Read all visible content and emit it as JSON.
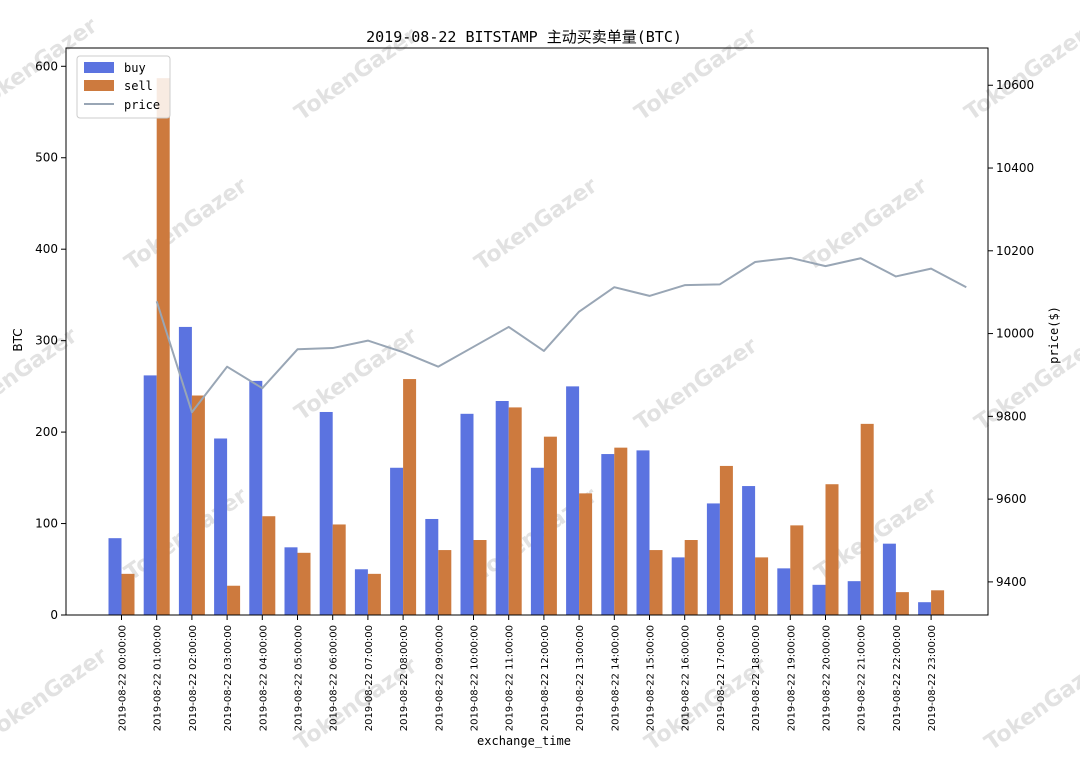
{
  "chart_data": {
    "type": "bar",
    "title": "2019-08-22 BITSTAMP 主动买卖单量(BTC)",
    "xlabel": "exchange_time",
    "ylabel": "BTC",
    "y2label": "price($)",
    "watermark": "TokenGazer",
    "ylim": [
      0,
      620
    ],
    "y_ticks": [
      0,
      100,
      200,
      300,
      400,
      500,
      600
    ],
    "y2lim": [
      9320,
      10690
    ],
    "y2_ticks": [
      9400,
      9600,
      9800,
      10000,
      10200,
      10400,
      10600
    ],
    "legend_position": "top-left",
    "categories": [
      "2019-08-22 00:00:00",
      "2019-08-22 01:00:00",
      "2019-08-22 02:00:00",
      "2019-08-22 03:00:00",
      "2019-08-22 04:00:00",
      "2019-08-22 05:00:00",
      "2019-08-22 06:00:00",
      "2019-08-22 07:00:00",
      "2019-08-22 08:00:00",
      "2019-08-22 09:00:00",
      "2019-08-22 10:00:00",
      "2019-08-22 11:00:00",
      "2019-08-22 12:00:00",
      "2019-08-22 13:00:00",
      "2019-08-22 14:00:00",
      "2019-08-22 15:00:00",
      "2019-08-22 16:00:00",
      "2019-08-22 17:00:00",
      "2019-08-22 18:00:00",
      "2019-08-22 19:00:00",
      "2019-08-22 20:00:00",
      "2019-08-22 21:00:00",
      "2019-08-22 22:00:00",
      "2019-08-22 23:00:00"
    ],
    "series": [
      {
        "name": "buy",
        "type": "bar",
        "axis": "left",
        "color": "#5b73e0",
        "values": [
          84,
          262,
          315,
          193,
          256,
          74,
          222,
          50,
          161,
          105,
          220,
          234,
          161,
          250,
          176,
          180,
          63,
          122,
          141,
          51,
          33,
          37,
          78,
          14
        ]
      },
      {
        "name": "sell",
        "type": "bar",
        "axis": "left",
        "color": "#cd7a3e",
        "values": [
          45,
          587,
          240,
          32,
          108,
          68,
          99,
          45,
          258,
          71,
          82,
          227,
          195,
          133,
          183,
          71,
          82,
          163,
          63,
          98,
          143,
          209,
          25,
          27
        ]
      },
      {
        "name": "price",
        "type": "line",
        "axis": "right",
        "color": "#99a6b5",
        "values": [
          10078,
          9810,
          9920,
          9868,
          9962,
          9965,
          9983,
          9955,
          9920,
          9968,
          10016,
          9958,
          10053,
          10112,
          10091,
          10117,
          10119,
          10173,
          10183,
          10163,
          10182,
          10138,
          10157,
          10112
        ]
      }
    ]
  }
}
